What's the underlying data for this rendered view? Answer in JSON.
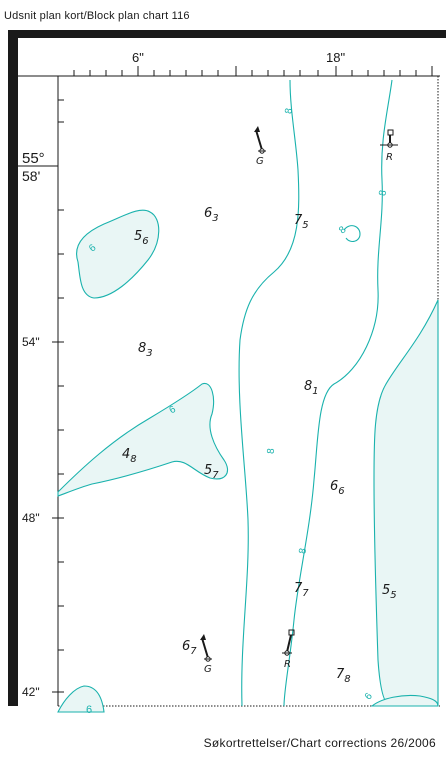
{
  "header": {
    "title": "Udsnit plan kort/Block plan chart 116"
  },
  "footer": {
    "corrections": "Søkortrettelser/Chart corrections 26/2006"
  },
  "top_axis": {
    "label_6": "6\"",
    "label_18": "18\""
  },
  "left_axis": {
    "deg_55": "55°",
    "min_58": "58'",
    "sec_54": "54\"",
    "sec_48": "48\"",
    "sec_42": "42\""
  },
  "soundings": [
    {
      "whole": "6",
      "sub": "3"
    },
    {
      "whole": "7",
      "sub": "5"
    },
    {
      "whole": "5",
      "sub": "6"
    },
    {
      "whole": "8",
      "sub": "3"
    },
    {
      "whole": "8",
      "sub": "1"
    },
    {
      "whole": "4",
      "sub": "8"
    },
    {
      "whole": "5",
      "sub": "7"
    },
    {
      "whole": "6",
      "sub": "6"
    },
    {
      "whole": "7",
      "sub": "7"
    },
    {
      "whole": "5",
      "sub": "5"
    },
    {
      "whole": "6",
      "sub": "7"
    },
    {
      "whole": "7",
      "sub": "8"
    }
  ],
  "contour_labels": {
    "eight": "8",
    "six": "6"
  },
  "buoys": [
    {
      "letter": "G",
      "color": "green",
      "icon": "lateral-buoy-icon"
    },
    {
      "letter": "R",
      "color": "red",
      "icon": "lateral-buoy-icon"
    },
    {
      "letter": "R",
      "color": "red",
      "icon": "lateral-buoy-icon"
    },
    {
      "letter": "G",
      "color": "green",
      "icon": "lateral-buoy-icon"
    }
  ],
  "colors": {
    "contour": "#1ab2ad",
    "shoal_fill": "#e9f6f5",
    "frame": "#1a1a1a"
  }
}
